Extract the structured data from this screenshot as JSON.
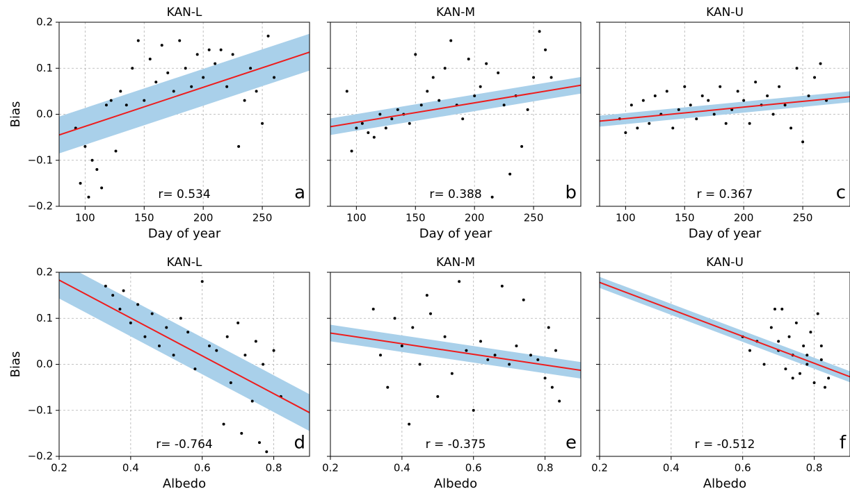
{
  "chart_data": [
    {
      "type": "scatter",
      "title": "KAN-L",
      "xlabel": "Day of year",
      "ylabel": "Bias",
      "annotation": "r= 0.534",
      "panel_label": "a",
      "xlim": [
        78,
        290
      ],
      "ylim": [
        -0.2,
        0.2
      ],
      "xticks": [
        100,
        150,
        200,
        250
      ],
      "yticks": [
        {
          "value": -0.2,
          "label": "−0.2"
        },
        {
          "value": -0.1,
          "label": "−0.1"
        },
        {
          "value": 0,
          "label": "0.0"
        },
        0.1,
        0.2
      ],
      "ytick_labels": true,
      "grid": true,
      "point_color": "#000000",
      "fit_color": "#ee1c1c",
      "band_color": "#a9d0ea",
      "x": [
        92,
        96,
        100,
        103,
        106,
        110,
        114,
        118,
        122,
        126,
        130,
        135,
        140,
        145,
        150,
        155,
        160,
        165,
        170,
        175,
        180,
        185,
        190,
        195,
        200,
        205,
        210,
        215,
        220,
        225,
        230,
        235,
        240,
        245,
        250,
        255,
        260
      ],
      "y": [
        -0.03,
        -0.15,
        -0.07,
        -0.18,
        -0.1,
        -0.12,
        -0.16,
        0.02,
        0.03,
        -0.08,
        0.05,
        0.02,
        0.1,
        0.16,
        0.03,
        0.12,
        0.07,
        0.15,
        0.09,
        0.05,
        0.16,
        0.1,
        0.06,
        0.13,
        0.08,
        0.14,
        0.11,
        0.14,
        0.06,
        0.13,
        -0.07,
        0.03,
        0.1,
        0.05,
        -0.02,
        0.17,
        0.08
      ],
      "fit_x": [
        78,
        290
      ],
      "fit_y": [
        -0.045,
        0.135
      ],
      "band_lower": [
        -0.085,
        0.095
      ],
      "band_upper": [
        -0.005,
        0.175
      ]
    },
    {
      "type": "scatter",
      "title": "KAN-M",
      "xlabel": "Day of year",
      "annotation": "r= 0.388",
      "panel_label": "b",
      "xlim": [
        78,
        290
      ],
      "ylim": [
        -0.2,
        0.2
      ],
      "xticks": [
        100,
        150,
        200,
        250
      ],
      "yticks": [
        -0.2,
        -0.1,
        0,
        0.1,
        0.2
      ],
      "ytick_labels": false,
      "grid": true,
      "point_color": "#000000",
      "fit_color": "#ee1c1c",
      "band_color": "#a9d0ea",
      "x": [
        92,
        96,
        100,
        105,
        110,
        115,
        120,
        125,
        130,
        135,
        140,
        145,
        150,
        155,
        160,
        165,
        170,
        175,
        180,
        185,
        190,
        195,
        200,
        205,
        210,
        215,
        220,
        225,
        230,
        235,
        240,
        245,
        250,
        255,
        260,
        265
      ],
      "y": [
        0.05,
        -0.08,
        -0.03,
        -0.02,
        -0.04,
        -0.05,
        0.0,
        -0.03,
        -0.01,
        0.01,
        0.0,
        -0.02,
        0.13,
        0.02,
        0.05,
        0.08,
        0.03,
        0.1,
        0.16,
        0.02,
        -0.01,
        0.12,
        0.04,
        0.06,
        0.11,
        -0.18,
        0.09,
        0.02,
        -0.13,
        0.04,
        -0.07,
        0.01,
        0.08,
        0.18,
        0.14,
        0.08
      ],
      "fit_x": [
        78,
        290
      ],
      "fit_y": [
        -0.027,
        0.063
      ],
      "band_lower": [
        -0.045,
        0.045
      ],
      "band_upper": [
        -0.009,
        0.081
      ]
    },
    {
      "type": "scatter",
      "title": "KAN-U",
      "xlabel": "Day of year",
      "annotation": "r = 0.367",
      "panel_label": "c",
      "xlim": [
        78,
        290
      ],
      "ylim": [
        -0.2,
        0.2
      ],
      "xticks": [
        100,
        150,
        200,
        250
      ],
      "yticks": [
        -0.2,
        -0.1,
        0,
        0.1,
        0.2
      ],
      "ytick_labels": false,
      "grid": true,
      "point_color": "#000000",
      "fit_color": "#ee1c1c",
      "band_color": "#a9d0ea",
      "x": [
        95,
        100,
        105,
        110,
        115,
        120,
        125,
        130,
        135,
        140,
        145,
        150,
        155,
        160,
        165,
        170,
        175,
        180,
        185,
        190,
        195,
        200,
        205,
        210,
        215,
        220,
        225,
        230,
        235,
        240,
        245,
        250,
        255,
        260,
        265,
        270
      ],
      "y": [
        -0.01,
        -0.04,
        0.02,
        -0.03,
        0.03,
        -0.02,
        0.04,
        0.0,
        0.05,
        -0.03,
        0.01,
        0.06,
        0.02,
        -0.01,
        0.04,
        0.03,
        0.0,
        0.06,
        -0.02,
        0.01,
        0.05,
        0.03,
        -0.02,
        0.07,
        0.02,
        0.04,
        0.0,
        0.06,
        0.02,
        -0.03,
        0.1,
        -0.06,
        0.04,
        0.08,
        0.11,
        0.03
      ],
      "fit_x": [
        78,
        290
      ],
      "fit_y": [
        -0.015,
        0.038
      ],
      "band_lower": [
        -0.027,
        0.026
      ],
      "band_upper": [
        -0.003,
        0.05
      ]
    },
    {
      "type": "scatter",
      "title": "KAN-L",
      "xlabel": "Albedo",
      "ylabel": "Bias",
      "annotation": "r= -0.764",
      "panel_label": "d",
      "xlim": [
        0.2,
        0.9
      ],
      "ylim": [
        -0.2,
        0.2
      ],
      "xticks": [
        0.2,
        0.4,
        0.6,
        0.8
      ],
      "yticks": [
        {
          "value": -0.2,
          "label": "−0.2"
        },
        {
          "value": -0.1,
          "label": "−0.1"
        },
        {
          "value": 0,
          "label": "0.0"
        },
        0.1,
        0.2
      ],
      "ytick_labels": true,
      "grid": true,
      "point_color": "#000000",
      "fit_color": "#ee1c1c",
      "band_color": "#a9d0ea",
      "x": [
        0.33,
        0.35,
        0.37,
        0.38,
        0.4,
        0.42,
        0.44,
        0.46,
        0.48,
        0.5,
        0.52,
        0.54,
        0.56,
        0.58,
        0.6,
        0.62,
        0.64,
        0.66,
        0.67,
        0.68,
        0.7,
        0.71,
        0.72,
        0.74,
        0.75,
        0.76,
        0.77,
        0.78,
        0.8,
        0.82
      ],
      "y": [
        0.17,
        0.15,
        0.12,
        0.16,
        0.09,
        0.13,
        0.06,
        0.11,
        0.04,
        0.08,
        0.02,
        0.1,
        0.07,
        -0.01,
        0.18,
        0.04,
        0.03,
        -0.13,
        0.06,
        -0.04,
        0.09,
        -0.15,
        0.02,
        -0.08,
        0.05,
        -0.17,
        0.0,
        -0.19,
        0.03,
        -0.07
      ],
      "fit_x": [
        0.2,
        0.9
      ],
      "fit_y": [
        0.183,
        -0.105
      ],
      "band_lower": [
        0.143,
        -0.145
      ],
      "band_upper": [
        0.223,
        -0.065
      ]
    },
    {
      "type": "scatter",
      "title": "KAN-M",
      "xlabel": "Albedo",
      "annotation": "r = -0.375",
      "panel_label": "e",
      "xlim": [
        0.2,
        0.9
      ],
      "ylim": [
        -0.2,
        0.2
      ],
      "xticks": [
        0.2,
        0.4,
        0.6,
        0.8
      ],
      "yticks": [
        -0.2,
        -0.1,
        0,
        0.1,
        0.2
      ],
      "ytick_labels": false,
      "grid": true,
      "point_color": "#000000",
      "fit_color": "#ee1c1c",
      "band_color": "#a9d0ea",
      "x": [
        0.32,
        0.34,
        0.36,
        0.38,
        0.4,
        0.42,
        0.43,
        0.45,
        0.47,
        0.48,
        0.5,
        0.52,
        0.54,
        0.56,
        0.58,
        0.6,
        0.62,
        0.64,
        0.66,
        0.68,
        0.7,
        0.72,
        0.74,
        0.76,
        0.78,
        0.8,
        0.81,
        0.82,
        0.83,
        0.84
      ],
      "y": [
        0.12,
        0.02,
        -0.05,
        0.1,
        0.04,
        -0.13,
        0.08,
        0.0,
        0.15,
        0.11,
        -0.07,
        0.06,
        -0.02,
        0.18,
        0.03,
        -0.1,
        0.05,
        0.01,
        0.02,
        0.17,
        0.0,
        0.04,
        0.14,
        0.02,
        0.01,
        -0.03,
        0.08,
        -0.05,
        0.03,
        -0.08
      ],
      "fit_x": [
        0.2,
        0.9
      ],
      "fit_y": [
        0.068,
        -0.013
      ],
      "band_lower": [
        0.05,
        -0.031
      ],
      "band_upper": [
        0.086,
        0.005
      ]
    },
    {
      "type": "scatter",
      "title": "KAN-U",
      "xlabel": "Albedo",
      "annotation": "r = -0.512",
      "panel_label": "f",
      "xlim": [
        0.2,
        0.9
      ],
      "ylim": [
        -0.2,
        0.2
      ],
      "xticks": [
        0.2,
        0.4,
        0.6,
        0.8
      ],
      "yticks": [
        -0.2,
        -0.1,
        0,
        0.1,
        0.2
      ],
      "ytick_labels": false,
      "grid": true,
      "point_color": "#000000",
      "fit_color": "#ee1c1c",
      "band_color": "#a9d0ea",
      "x": [
        0.6,
        0.62,
        0.64,
        0.66,
        0.68,
        0.69,
        0.7,
        0.71,
        0.72,
        0.73,
        0.74,
        0.75,
        0.76,
        0.77,
        0.78,
        0.79,
        0.8,
        0.81,
        0.82,
        0.83,
        0.84,
        0.7,
        0.74,
        0.78,
        0.82
      ],
      "y": [
        0.06,
        0.03,
        0.05,
        0.0,
        0.08,
        0.12,
        0.03,
        0.12,
        -0.01,
        0.06,
        0.02,
        0.09,
        -0.02,
        0.04,
        0.0,
        0.07,
        -0.04,
        0.11,
        0.01,
        -0.05,
        -0.03,
        0.05,
        -0.03,
        0.02,
        0.04
      ],
      "fit_x": [
        0.2,
        0.9
      ],
      "fit_y": [
        0.178,
        -0.027
      ],
      "band_lower": [
        0.166,
        -0.039
      ],
      "band_upper": [
        0.19,
        -0.015
      ]
    }
  ]
}
